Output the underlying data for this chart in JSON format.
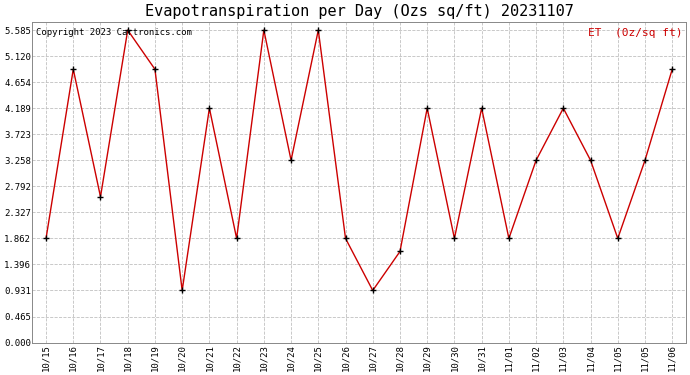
{
  "title": "Evapotranspiration per Day (Ozs sq/ft) 20231107",
  "copyright": "Copyright 2023 Cartronics.com",
  "legend_label": "ET  (0z/sq ft)",
  "x_labels": [
    "10/15",
    "10/16",
    "10/17",
    "10/18",
    "10/19",
    "10/20",
    "10/21",
    "10/22",
    "10/23",
    "10/24",
    "10/25",
    "10/26",
    "10/27",
    "10/28",
    "10/29",
    "10/30",
    "10/31",
    "11/01",
    "11/02",
    "11/03",
    "11/04",
    "11/05",
    "11/05",
    "11/06"
  ],
  "y_values": [
    1.862,
    4.885,
    2.606,
    5.585,
    4.885,
    0.931,
    4.189,
    1.862,
    5.585,
    3.258,
    5.585,
    1.862,
    0.931,
    1.628,
    4.189,
    1.862,
    4.189,
    1.862,
    3.258,
    4.189,
    3.258,
    1.862,
    3.258,
    4.885
  ],
  "y_ticks": [
    0.0,
    0.465,
    0.931,
    1.396,
    1.862,
    2.327,
    2.792,
    3.258,
    3.723,
    4.189,
    4.654,
    5.12,
    5.585
  ],
  "line_color": "#cc0000",
  "marker_color": "#000000",
  "grid_color": "#c0c0c0",
  "bg_color": "#ffffff",
  "title_fontsize": 11,
  "copyright_fontsize": 6.5,
  "legend_color": "#cc0000",
  "legend_fontsize": 8,
  "tick_fontsize": 6.5,
  "ylim": [
    0.0,
    5.585
  ]
}
